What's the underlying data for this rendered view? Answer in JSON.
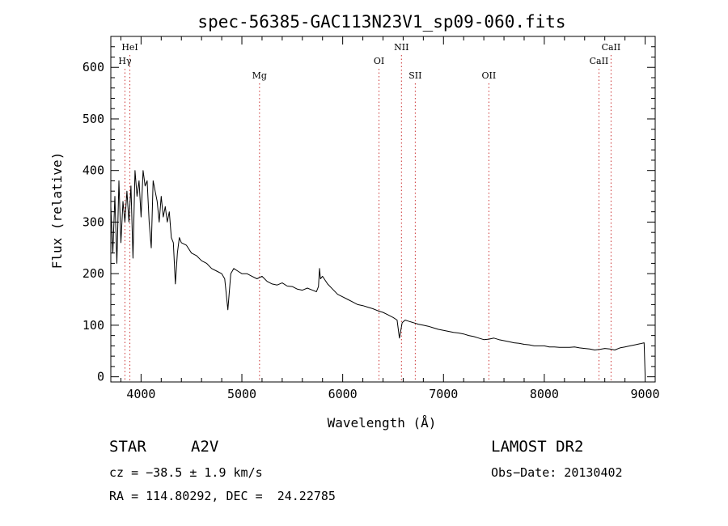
{
  "chart_data": {
    "type": "line",
    "title": "spec-56385-GAC113N23V1_sp09-060.fits",
    "xlabel": "Wavelength (Å)",
    "ylabel": "Flux (relative)",
    "xlim": [
      3700,
      9100
    ],
    "ylim": [
      -10,
      660
    ],
    "xticks": [
      4000,
      5000,
      6000,
      7000,
      8000,
      9000
    ],
    "xtick_labels": [
      "4000",
      "5000",
      "6000",
      "7000",
      "8000",
      "9000"
    ],
    "yticks": [
      0,
      100,
      200,
      300,
      400,
      500,
      600
    ],
    "ytick_labels": [
      "0",
      "100",
      "200",
      "300",
      "400",
      "500",
      "600"
    ],
    "grid": false,
    "series": [
      {
        "x": [
          3700,
          3720,
          3740,
          3760,
          3780,
          3800,
          3820,
          3840,
          3860,
          3880,
          3900,
          3920,
          3940,
          3960,
          3980,
          4000,
          4020,
          4040,
          4060,
          4080,
          4101,
          4120,
          4140,
          4160,
          4180,
          4200,
          4220,
          4240,
          4260,
          4280,
          4300,
          4320,
          4340,
          4360,
          4380,
          4400,
          4450,
          4500,
          4550,
          4600,
          4650,
          4700,
          4750,
          4800,
          4830,
          4861,
          4890,
          4920,
          4960,
          5000,
          5050,
          5100,
          5150,
          5200,
          5250,
          5300,
          5350,
          5400,
          5450,
          5500,
          5550,
          5600,
          5650,
          5700,
          5740,
          5760,
          5770,
          5780,
          5800,
          5850,
          5900,
          5950,
          6000,
          6050,
          6100,
          6150,
          6200,
          6250,
          6300,
          6350,
          6400,
          6450,
          6500,
          6540,
          6563,
          6590,
          6620,
          6650,
          6700,
          6750,
          6800,
          6850,
          6900,
          6950,
          7000,
          7050,
          7100,
          7150,
          7200,
          7250,
          7300,
          7350,
          7400,
          7450,
          7500,
          7550,
          7600,
          7650,
          7700,
          7750,
          7800,
          7850,
          7900,
          7950,
          8000,
          8050,
          8100,
          8150,
          8200,
          8250,
          8300,
          8350,
          8400,
          8450,
          8500,
          8550,
          8600,
          8650,
          8700,
          8750,
          8800,
          8850,
          8900,
          8950,
          8990,
          9000
        ],
        "values": [
          330,
          240,
          350,
          220,
          380,
          260,
          340,
          300,
          360,
          300,
          370,
          230,
          400,
          350,
          380,
          310,
          400,
          370,
          380,
          300,
          250,
          380,
          360,
          340,
          300,
          350,
          310,
          330,
          300,
          320,
          270,
          260,
          180,
          240,
          270,
          260,
          255,
          240,
          235,
          225,
          220,
          210,
          205,
          200,
          190,
          130,
          200,
          210,
          205,
          200,
          200,
          195,
          190,
          195,
          185,
          180,
          178,
          182,
          176,
          175,
          170,
          168,
          172,
          168,
          165,
          175,
          210,
          190,
          195,
          180,
          170,
          160,
          155,
          150,
          145,
          140,
          138,
          135,
          132,
          128,
          125,
          120,
          115,
          110,
          75,
          105,
          110,
          108,
          105,
          102,
          100,
          98,
          95,
          92,
          90,
          88,
          86,
          85,
          83,
          80,
          78,
          75,
          72,
          73,
          75,
          72,
          70,
          68,
          66,
          65,
          63,
          62,
          60,
          60,
          60,
          58,
          58,
          57,
          57,
          57,
          58,
          56,
          55,
          54,
          52,
          53,
          55,
          54,
          52,
          56,
          58,
          60,
          62,
          64,
          66,
          5
        ]
      }
    ],
    "lines": [
      {
        "label": "HeI",
        "x": 3889,
        "label_row": 1
      },
      {
        "label": "Hγ",
        "x": 3840,
        "label_row": 2
      },
      {
        "label": "Mg",
        "x": 5175,
        "label_row": 3
      },
      {
        "label": "OI",
        "x": 6360,
        "label_row": 2
      },
      {
        "label": "NII",
        "x": 6583,
        "label_row": 1
      },
      {
        "label": "SII",
        "x": 6720,
        "label_row": 3
      },
      {
        "label": "OII",
        "x": 7450,
        "label_row": 3
      },
      {
        "label": "CaII",
        "x": 8542,
        "label_row": 2
      },
      {
        "label": "CaII",
        "x": 8662,
        "label_row": 1
      }
    ]
  },
  "info": {
    "object_type": "STAR",
    "subclass": "A2V",
    "survey": "LAMOST DR2",
    "cz": "cz = −38.5 ± 1.9 km/s",
    "obs_date": "Obs−Date: 20130402",
    "coords": "RA = 114.80292, DEC =  24.22785"
  },
  "colors": {
    "spectrum": "#000000",
    "line_markers": "#cc3333",
    "axes": "#000000"
  }
}
